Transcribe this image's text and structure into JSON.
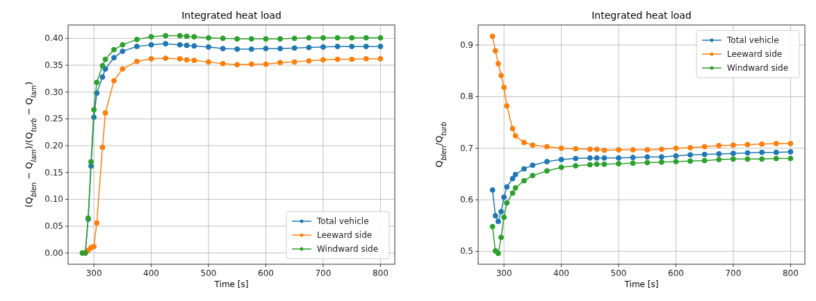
{
  "chart_data": [
    {
      "type": "line",
      "title": "Integrated heat load",
      "xlabel": "Time [s]",
      "ylabel": "(Q$_{blen}$ − Q$_{lam}$)/(Q$_{turb}$ − Q$_{lam}$)",
      "x": [
        280,
        285,
        290,
        295,
        300,
        305,
        315,
        320,
        335,
        350,
        375,
        400,
        425,
        450,
        462,
        475,
        500,
        525,
        550,
        575,
        600,
        625,
        650,
        675,
        700,
        725,
        750,
        775,
        800
      ],
      "series": [
        {
          "name": "Total vehicle",
          "color": "#1f77b4",
          "values": [
            0,
            0,
            0.063,
            0.162,
            0.253,
            0.298,
            0.328,
            0.343,
            0.364,
            0.376,
            0.385,
            0.388,
            0.39,
            0.388,
            0.387,
            0.386,
            0.384,
            0.381,
            0.38,
            0.38,
            0.381,
            0.381,
            0.382,
            0.383,
            0.384,
            0.385,
            0.385,
            0.385,
            0.385
          ]
        },
        {
          "name": "Leeward side",
          "color": "#ff7f0e",
          "values": [
            0,
            0,
            0.005,
            0.01,
            0.012,
            0.056,
            0.197,
            0.261,
            0.321,
            0.343,
            0.357,
            0.362,
            0.363,
            0.362,
            0.36,
            0.359,
            0.356,
            0.353,
            0.351,
            0.352,
            0.352,
            0.355,
            0.356,
            0.358,
            0.36,
            0.361,
            0.361,
            0.362,
            0.362
          ]
        },
        {
          "name": "Windward side",
          "color": "#2ca02c",
          "values": [
            0,
            0,
            0.065,
            0.17,
            0.267,
            0.318,
            0.349,
            0.361,
            0.379,
            0.388,
            0.398,
            0.403,
            0.405,
            0.405,
            0.404,
            0.403,
            0.401,
            0.4,
            0.399,
            0.399,
            0.399,
            0.399,
            0.4,
            0.401,
            0.401,
            0.401,
            0.401,
            0.401,
            0.401
          ]
        }
      ],
      "xlim": [
        255,
        825
      ],
      "xticks": [
        300,
        400,
        500,
        600,
        700,
        800
      ],
      "ylim": [
        -0.021,
        0.425
      ],
      "yticks": [
        {
          "value": 0,
          "label": "0.00"
        },
        {
          "value": 0.05,
          "label": "0.05"
        },
        {
          "value": 0.1,
          "label": "0.10"
        },
        {
          "value": 0.15,
          "label": "0.15"
        },
        {
          "value": 0.2,
          "label": "0.20"
        },
        {
          "value": 0.25,
          "label": "0.25"
        },
        {
          "value": 0.3,
          "label": "0.30"
        },
        {
          "value": 0.35,
          "label": "0.35"
        },
        {
          "value": 0.4,
          "label": "0.40"
        }
      ],
      "grid": true,
      "legend": "bottom right",
      "marker": "circle",
      "line_style": "solid"
    },
    {
      "type": "line",
      "title": "Integrated heat load",
      "xlabel": "Time [s]",
      "ylabel": "Q$_{blen}$/Q$_{turb}$",
      "x": [
        280,
        285,
        290,
        295,
        300,
        305,
        315,
        320,
        335,
        350,
        375,
        400,
        425,
        450,
        462,
        475,
        500,
        525,
        550,
        575,
        600,
        625,
        650,
        675,
        700,
        725,
        750,
        775,
        800
      ],
      "series": [
        {
          "name": "Total vehicle",
          "color": "#1f77b4",
          "values": [
            0.619,
            0.569,
            0.558,
            0.577,
            0.605,
            0.625,
            0.641,
            0.649,
            0.66,
            0.667,
            0.674,
            0.678,
            0.68,
            0.681,
            0.681,
            0.681,
            0.681,
            0.682,
            0.683,
            0.683,
            0.685,
            0.687,
            0.688,
            0.689,
            0.69,
            0.691,
            0.692,
            0.692,
            0.693
          ]
        },
        {
          "name": "Leeward side",
          "color": "#ff7f0e",
          "values": [
            0.917,
            0.889,
            0.864,
            0.841,
            0.818,
            0.782,
            0.738,
            0.724,
            0.711,
            0.706,
            0.703,
            0.7,
            0.699,
            0.698,
            0.698,
            0.696,
            0.697,
            0.697,
            0.697,
            0.698,
            0.7,
            0.701,
            0.703,
            0.705,
            0.706,
            0.707,
            0.708,
            0.709,
            0.709
          ]
        },
        {
          "name": "Windward side",
          "color": "#2ca02c",
          "values": [
            0.548,
            0.501,
            0.496,
            0.527,
            0.566,
            0.594,
            0.613,
            0.623,
            0.637,
            0.647,
            0.656,
            0.663,
            0.666,
            0.668,
            0.669,
            0.669,
            0.67,
            0.671,
            0.672,
            0.673,
            0.674,
            0.675,
            0.676,
            0.678,
            0.679,
            0.679,
            0.679,
            0.68,
            0.68
          ]
        }
      ],
      "xlim": [
        255,
        825
      ],
      "xticks": [
        300,
        400,
        500,
        600,
        700,
        800
      ],
      "ylim": [
        0.475,
        0.939
      ],
      "yticks": [
        0.5,
        0.6,
        0.7,
        0.8,
        0.9
      ],
      "grid": true,
      "legend": "top right",
      "marker": "circle",
      "line_style": "solid"
    }
  ]
}
